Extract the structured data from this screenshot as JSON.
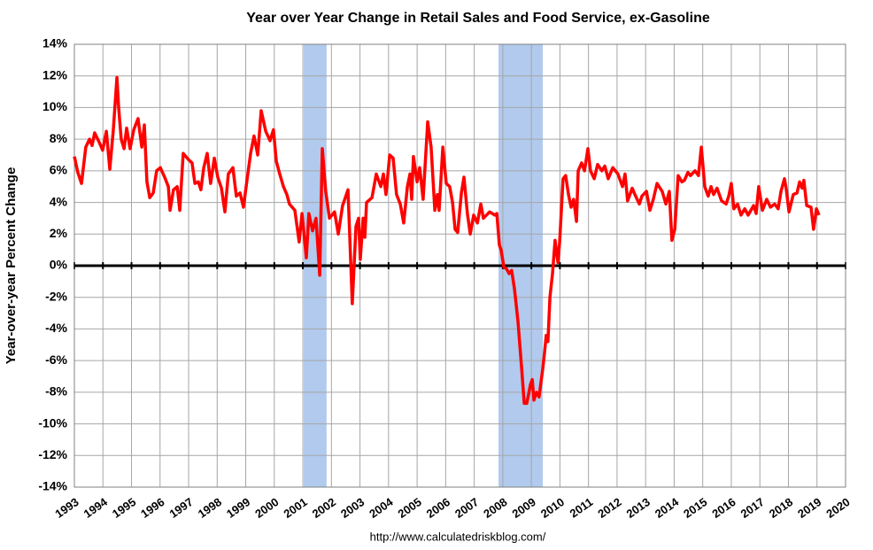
{
  "chart_data": {
    "type": "line",
    "title": "Year over Year Change in Retail Sales and Food Service, ex-Gasoline",
    "y_label": "Year-over-year Percent Change",
    "source": "http://www.calculatedriskblog.com/",
    "xlim": [
      1993,
      2020
    ],
    "xticks": [
      1993,
      1994,
      1995,
      1996,
      1997,
      1998,
      1999,
      2000,
      2001,
      2002,
      2003,
      2004,
      2005,
      2006,
      2007,
      2008,
      2009,
      2010,
      2011,
      2012,
      2013,
      2014,
      2015,
      2016,
      2017,
      2018,
      2019,
      2020
    ],
    "ylim": [
      -14,
      14
    ],
    "yticks": [
      {
        "value": -14,
        "label": "-14%"
      },
      {
        "value": -12,
        "label": "-12%"
      },
      {
        "value": -10,
        "label": "-10%"
      },
      {
        "value": -8,
        "label": "-8%"
      },
      {
        "value": -6,
        "label": "-6%"
      },
      {
        "value": -4,
        "label": "-4%"
      },
      {
        "value": -2,
        "label": "-2%"
      },
      {
        "value": 0,
        "label": "0%"
      },
      {
        "value": 2,
        "label": "2%"
      },
      {
        "value": 4,
        "label": "4%"
      },
      {
        "value": 6,
        "label": "6%"
      },
      {
        "value": 8,
        "label": "8%"
      },
      {
        "value": 10,
        "label": "10%"
      },
      {
        "value": 12,
        "label": "12%"
      },
      {
        "value": 14,
        "label": "14%"
      }
    ],
    "grid": true,
    "shaded_regions": [
      [
        2001.03,
        2001.83
      ],
      [
        2007.85,
        2009.4
      ]
    ],
    "shaded_color": "#a9c4eb",
    "x": [
      1993.0,
      1993.12,
      1993.25,
      1993.4,
      1993.53,
      1993.62,
      1993.71,
      1993.87,
      1993.99,
      1994.12,
      1994.24,
      1994.36,
      1994.49,
      1994.55,
      1994.64,
      1994.74,
      1994.83,
      1994.95,
      1995.08,
      1995.23,
      1995.36,
      1995.45,
      1995.54,
      1995.64,
      1995.76,
      1995.88,
      1996.01,
      1996.16,
      1996.29,
      1996.35,
      1996.47,
      1996.6,
      1996.69,
      1996.81,
      1997.0,
      1997.12,
      1997.22,
      1997.34,
      1997.43,
      1997.53,
      1997.65,
      1997.77,
      1997.9,
      1998.02,
      1998.15,
      1998.27,
      1998.39,
      1998.55,
      1998.67,
      1998.8,
      1998.92,
      1999.05,
      1999.17,
      1999.29,
      1999.42,
      1999.54,
      1999.7,
      1999.85,
      1999.97,
      2000.07,
      2000.19,
      2000.32,
      2000.44,
      2000.53,
      2000.72,
      2000.87,
      2000.97,
      2001.12,
      2001.21,
      2001.34,
      2001.46,
      2001.59,
      2001.68,
      2001.8,
      2001.93,
      2002.11,
      2002.24,
      2002.39,
      2002.58,
      2002.73,
      2002.86,
      2002.95,
      2003.01,
      2003.11,
      2003.17,
      2003.23,
      2003.42,
      2003.57,
      2003.73,
      2003.82,
      2003.91,
      2004.04,
      2004.16,
      2004.28,
      2004.41,
      2004.53,
      2004.66,
      2004.75,
      2004.81,
      2004.87,
      2005.0,
      2005.09,
      2005.21,
      2005.37,
      2005.49,
      2005.62,
      2005.71,
      2005.77,
      2005.9,
      2006.02,
      2006.14,
      2006.24,
      2006.33,
      2006.42,
      2006.55,
      2006.64,
      2006.76,
      2006.86,
      2006.98,
      2007.11,
      2007.23,
      2007.32,
      2007.54,
      2007.72,
      2007.79,
      2007.88,
      2007.94,
      2008.04,
      2008.13,
      2008.22,
      2008.31,
      2008.41,
      2008.53,
      2008.66,
      2008.75,
      2008.84,
      2008.97,
      2009.03,
      2009.09,
      2009.18,
      2009.27,
      2009.4,
      2009.46,
      2009.52,
      2009.58,
      2009.65,
      2009.74,
      2009.83,
      2009.93,
      2009.99,
      2010.05,
      2010.11,
      2010.2,
      2010.3,
      2010.39,
      2010.48,
      2010.58,
      2010.64,
      2010.76,
      2010.86,
      2010.98,
      2011.07,
      2011.2,
      2011.32,
      2011.47,
      2011.57,
      2011.69,
      2011.85,
      2012.03,
      2012.19,
      2012.28,
      2012.37,
      2012.53,
      2012.65,
      2012.78,
      2012.87,
      2013.03,
      2013.15,
      2013.27,
      2013.4,
      2013.58,
      2013.71,
      2013.83,
      2013.92,
      2014.02,
      2014.14,
      2014.27,
      2014.36,
      2014.48,
      2014.57,
      2014.73,
      2014.85,
      2014.95,
      2015.07,
      2015.19,
      2015.29,
      2015.38,
      2015.5,
      2015.66,
      2015.82,
      2015.91,
      2016.0,
      2016.09,
      2016.22,
      2016.34,
      2016.47,
      2016.59,
      2016.78,
      2016.87,
      2016.96,
      2017.09,
      2017.24,
      2017.37,
      2017.52,
      2017.64,
      2017.74,
      2017.86,
      2017.92,
      2018.02,
      2018.17,
      2018.3,
      2018.39,
      2018.48,
      2018.54,
      2018.64,
      2018.79,
      2018.88,
      2018.98,
      2019.07
    ],
    "series": [
      {
        "color": "#ff0000",
        "values": [
          6.9,
          5.9,
          5.2,
          7.5,
          8.0,
          7.6,
          8.4,
          7.8,
          7.3,
          8.5,
          6.1,
          8.5,
          11.9,
          10.0,
          8.0,
          7.4,
          8.7,
          7.4,
          8.6,
          9.3,
          7.5,
          8.9,
          5.3,
          4.3,
          4.6,
          6.0,
          6.2,
          5.6,
          5.0,
          3.5,
          4.8,
          5.0,
          3.5,
          7.1,
          6.7,
          6.5,
          5.2,
          5.3,
          4.8,
          6.2,
          7.1,
          5.2,
          6.8,
          5.6,
          4.9,
          3.4,
          5.8,
          6.2,
          4.4,
          4.6,
          3.7,
          5.5,
          7.1,
          8.2,
          7.0,
          9.8,
          8.5,
          7.9,
          8.6,
          6.6,
          5.8,
          5.0,
          4.5,
          3.9,
          3.5,
          1.5,
          3.3,
          0.5,
          3.3,
          2.2,
          3.0,
          -0.6,
          7.4,
          4.7,
          3.0,
          3.4,
          2.0,
          3.8,
          4.8,
          -2.4,
          2.5,
          3.0,
          0.4,
          3.0,
          1.8,
          4.0,
          4.3,
          5.8,
          5.0,
          5.8,
          4.5,
          7.0,
          6.8,
          4.5,
          3.9,
          2.7,
          5.0,
          5.8,
          4.2,
          6.9,
          5.3,
          6.2,
          4.2,
          9.1,
          7.5,
          3.5,
          4.5,
          3.5,
          7.5,
          5.2,
          5.0,
          4.0,
          2.3,
          2.1,
          4.6,
          5.6,
          3.3,
          2.0,
          3.2,
          2.7,
          3.9,
          3.0,
          3.4,
          3.2,
          3.3,
          1.3,
          1.0,
          -0.1,
          -0.2,
          -0.5,
          -0.3,
          -1.5,
          -3.5,
          -6.5,
          -8.7,
          -8.7,
          -7.5,
          -7.2,
          -8.5,
          -8.0,
          -8.3,
          -6.5,
          -5.5,
          -4.4,
          -4.8,
          -2.0,
          -0.5,
          1.6,
          0.2,
          1.5,
          3.5,
          5.5,
          5.7,
          4.5,
          3.7,
          4.2,
          2.8,
          6.0,
          6.5,
          6.0,
          7.4,
          6.0,
          5.5,
          6.4,
          6.0,
          6.3,
          5.5,
          6.2,
          5.8,
          5.0,
          5.8,
          4.1,
          4.9,
          4.4,
          3.9,
          4.4,
          4.7,
          3.5,
          4.2,
          5.2,
          4.7,
          3.9,
          4.7,
          1.6,
          2.3,
          5.7,
          5.3,
          5.4,
          5.9,
          5.7,
          6.0,
          5.7,
          7.5,
          5.0,
          4.4,
          5.0,
          4.5,
          4.9,
          4.1,
          3.9,
          4.4,
          5.2,
          3.6,
          3.9,
          3.2,
          3.6,
          3.2,
          3.8,
          3.3,
          5.0,
          3.5,
          4.2,
          3.7,
          3.9,
          3.6,
          4.7,
          5.5,
          4.9,
          3.4,
          4.5,
          4.6,
          5.3,
          4.9,
          5.4,
          3.8,
          3.7,
          2.3,
          3.6,
          3.2
        ]
      }
    ]
  }
}
